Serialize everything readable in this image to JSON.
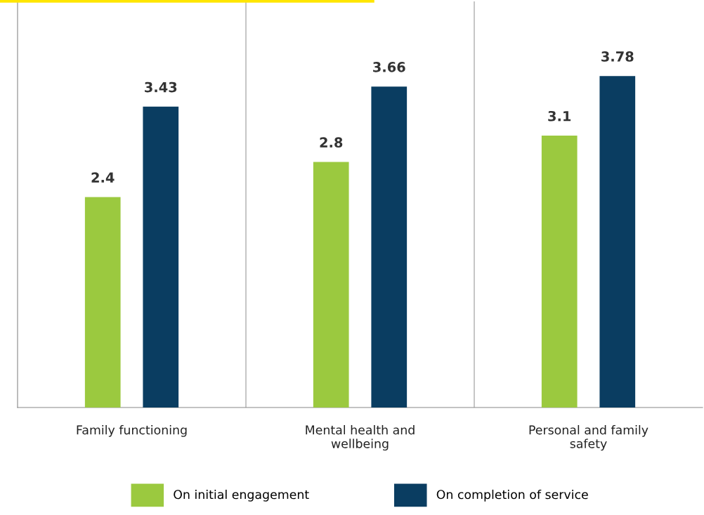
{
  "chart_data": {
    "type": "bar",
    "categories": [
      "Family functioning",
      "Mental health and\nwellbeing",
      "Personal and family\nsafety"
    ],
    "series": [
      {
        "name": "On initial engagement",
        "color": "#9bc93f",
        "values": [
          2.4,
          2.8,
          3.1
        ]
      },
      {
        "name": "On completion of service",
        "color": "#0a3d61",
        "values": [
          3.43,
          3.66,
          3.78
        ]
      }
    ],
    "data_labels": true,
    "grid": "x",
    "legend": "bottom"
  }
}
